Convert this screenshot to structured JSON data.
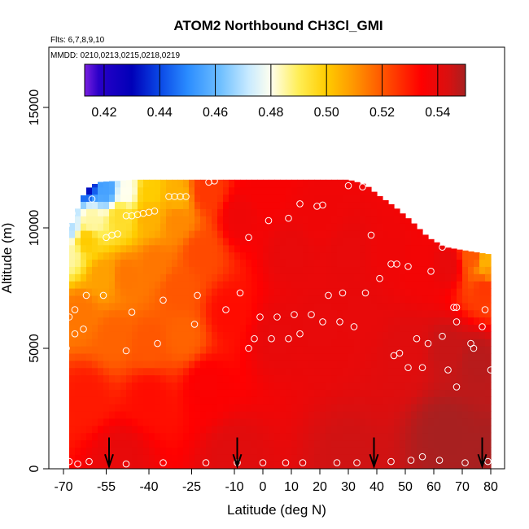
{
  "chart_data": {
    "type": "heatmap",
    "title": "ATOM2 Northbound CH3Cl_GMI",
    "flights_note": "Flts: 6,7,8,9,10",
    "dates_note": "MMDD: 0210,0213,0215,0218,0219",
    "xlabel": "Latitude (deg N)",
    "ylabel": "Altitude (m)",
    "xlim": [
      -70,
      80
    ],
    "ylim": [
      0,
      17500
    ],
    "x_tick_labels": [
      "-70",
      "-55",
      "-40",
      "-25",
      "-10",
      "0",
      "10",
      "20",
      "30",
      "40",
      "50",
      "60",
      "70",
      "80"
    ],
    "x_ticks": [
      -70,
      -55,
      -40,
      -25,
      -10,
      0,
      10,
      20,
      30,
      40,
      50,
      60,
      70,
      80
    ],
    "y_tick_labels": [
      "0",
      "5000",
      "10000",
      "15000"
    ],
    "y_ticks": [
      0,
      5000,
      10000,
      15000
    ],
    "colorbar": {
      "range": [
        0.413,
        0.55
      ],
      "tick_labels": [
        "0.42",
        "0.44",
        "0.46",
        "0.48",
        "0.50",
        "0.52",
        "0.54"
      ],
      "ticks": [
        0.42,
        0.44,
        0.46,
        0.48,
        0.5,
        0.52,
        0.54
      ],
      "stops": [
        {
          "v": 0.413,
          "color": "#7a1fe0"
        },
        {
          "v": 0.418,
          "color": "#2a00c8"
        },
        {
          "v": 0.43,
          "color": "#0000b8"
        },
        {
          "v": 0.44,
          "color": "#0a48e6"
        },
        {
          "v": 0.45,
          "color": "#2a8cff"
        },
        {
          "v": 0.462,
          "color": "#70c0ff"
        },
        {
          "v": 0.472,
          "color": "#c8eaff"
        },
        {
          "v": 0.48,
          "color": "#ffffee"
        },
        {
          "v": 0.49,
          "color": "#ffee55"
        },
        {
          "v": 0.5,
          "color": "#ffcc00"
        },
        {
          "v": 0.51,
          "color": "#ff9500"
        },
        {
          "v": 0.522,
          "color": "#ff4a00"
        },
        {
          "v": 0.534,
          "color": "#ff0000"
        },
        {
          "v": 0.544,
          "color": "#d81010"
        },
        {
          "v": 0.55,
          "color": "#a82020"
        }
      ]
    },
    "ceiling_profile": [
      {
        "lat": -68,
        "alt": 9900
      },
      {
        "lat": -66,
        "alt": 10500
      },
      {
        "lat": -64,
        "alt": 11100
      },
      {
        "lat": -62,
        "alt": 11600
      },
      {
        "lat": -58,
        "alt": 11900
      },
      {
        "lat": -45,
        "alt": 12000
      },
      {
        "lat": 30,
        "alt": 12000
      },
      {
        "lat": 36,
        "alt": 11800
      },
      {
        "lat": 40,
        "alt": 11400
      },
      {
        "lat": 46,
        "alt": 10900
      },
      {
        "lat": 52,
        "alt": 10300
      },
      {
        "lat": 58,
        "alt": 9600
      },
      {
        "lat": 64,
        "alt": 9200
      },
      {
        "lat": 74,
        "alt": 9000
      },
      {
        "lat": 80,
        "alt": 8900
      }
    ],
    "field_anchors": [
      {
        "lat": -68,
        "alt": 11500,
        "v": 0.45
      },
      {
        "lat": -62,
        "alt": 11900,
        "v": 0.43
      },
      {
        "lat": -55,
        "alt": 11600,
        "v": 0.455
      },
      {
        "lat": -48,
        "alt": 11500,
        "v": 0.48
      },
      {
        "lat": -40,
        "alt": 11400,
        "v": 0.5
      },
      {
        "lat": -30,
        "alt": 11300,
        "v": 0.505
      },
      {
        "lat": -20,
        "alt": 11500,
        "v": 0.525
      },
      {
        "lat": -68,
        "alt": 10000,
        "v": 0.47
      },
      {
        "lat": -60,
        "alt": 10300,
        "v": 0.485
      },
      {
        "lat": -50,
        "alt": 10500,
        "v": 0.495
      },
      {
        "lat": -40,
        "alt": 10500,
        "v": 0.505
      },
      {
        "lat": -30,
        "alt": 10300,
        "v": 0.512
      },
      {
        "lat": -68,
        "alt": 9000,
        "v": 0.485
      },
      {
        "lat": -62,
        "alt": 9500,
        "v": 0.5
      },
      {
        "lat": -56,
        "alt": 8000,
        "v": 0.508
      },
      {
        "lat": -48,
        "alt": 8000,
        "v": 0.515
      },
      {
        "lat": -38,
        "alt": 8500,
        "v": 0.515
      },
      {
        "lat": -30,
        "alt": 7500,
        "v": 0.52
      },
      {
        "lat": -22,
        "alt": 9000,
        "v": 0.522
      },
      {
        "lat": -64,
        "alt": 6500,
        "v": 0.515
      },
      {
        "lat": -52,
        "alt": 5500,
        "v": 0.518
      },
      {
        "lat": -40,
        "alt": 5200,
        "v": 0.52
      },
      {
        "lat": -28,
        "alt": 5500,
        "v": 0.518
      },
      {
        "lat": -62,
        "alt": 3000,
        "v": 0.53
      },
      {
        "lat": -40,
        "alt": 3000,
        "v": 0.532
      },
      {
        "lat": -20,
        "alt": 3500,
        "v": 0.535
      },
      {
        "lat": -12,
        "alt": 6500,
        "v": 0.532
      },
      {
        "lat": -8,
        "alt": 10500,
        "v": 0.538
      },
      {
        "lat": 0,
        "alt": 11500,
        "v": 0.536
      },
      {
        "lat": 10,
        "alt": 9000,
        "v": 0.54
      },
      {
        "lat": 20,
        "alt": 10500,
        "v": 0.538
      },
      {
        "lat": 30,
        "alt": 9000,
        "v": 0.54
      },
      {
        "lat": 5,
        "alt": 5500,
        "v": 0.54
      },
      {
        "lat": 20,
        "alt": 6000,
        "v": 0.54
      },
      {
        "lat": 35,
        "alt": 6500,
        "v": 0.54
      },
      {
        "lat": 45,
        "alt": 9000,
        "v": 0.538
      },
      {
        "lat": 55,
        "alt": 8500,
        "v": 0.537
      },
      {
        "lat": 65,
        "alt": 8500,
        "v": 0.54
      },
      {
        "lat": 74,
        "alt": 8800,
        "v": 0.52
      },
      {
        "lat": 78,
        "alt": 8600,
        "v": 0.505
      },
      {
        "lat": 80,
        "alt": 8300,
        "v": 0.51
      },
      {
        "lat": 78,
        "alt": 7500,
        "v": 0.525
      },
      {
        "lat": 50,
        "alt": 5000,
        "v": 0.542
      },
      {
        "lat": 65,
        "alt": 5000,
        "v": 0.546
      },
      {
        "lat": 75,
        "alt": 4500,
        "v": 0.548
      },
      {
        "lat": -50,
        "alt": 500,
        "v": 0.54
      },
      {
        "lat": -10,
        "alt": 500,
        "v": 0.542
      },
      {
        "lat": 30,
        "alt": 500,
        "v": 0.545
      },
      {
        "lat": 65,
        "alt": 1500,
        "v": 0.55
      },
      {
        "lat": 80,
        "alt": 500,
        "v": 0.55
      }
    ],
    "observation_points": [
      {
        "lat": -67,
        "alt": 12000
      },
      {
        "lat": -64,
        "alt": 11900
      },
      {
        "lat": -60,
        "alt": 11200
      },
      {
        "lat": -69,
        "alt": 10100
      },
      {
        "lat": -67,
        "alt": 10600
      },
      {
        "lat": -55,
        "alt": 9600
      },
      {
        "lat": -53,
        "alt": 9700
      },
      {
        "lat": -51,
        "alt": 9750
      },
      {
        "lat": -48,
        "alt": 10500
      },
      {
        "lat": -46,
        "alt": 10500
      },
      {
        "lat": -44,
        "alt": 10550
      },
      {
        "lat": -42,
        "alt": 10600
      },
      {
        "lat": -40,
        "alt": 10650
      },
      {
        "lat": -38,
        "alt": 10700
      },
      {
        "lat": -33,
        "alt": 11300
      },
      {
        "lat": -31,
        "alt": 11300
      },
      {
        "lat": -29,
        "alt": 11300
      },
      {
        "lat": -27,
        "alt": 11300
      },
      {
        "lat": -19,
        "alt": 11900
      },
      {
        "lat": -17,
        "alt": 11950
      },
      {
        "lat": -5,
        "alt": 9600
      },
      {
        "lat": 2,
        "alt": 10300
      },
      {
        "lat": 9,
        "alt": 10400
      },
      {
        "lat": 13,
        "alt": 11000
      },
      {
        "lat": 19,
        "alt": 10900
      },
      {
        "lat": 21,
        "alt": 10950
      },
      {
        "lat": 30,
        "alt": 11750
      },
      {
        "lat": 35,
        "alt": 11700
      },
      {
        "lat": 43,
        "alt": 11900
      },
      {
        "lat": 38,
        "alt": 9700
      },
      {
        "lat": 45,
        "alt": 8500
      },
      {
        "lat": 47,
        "alt": 8500
      },
      {
        "lat": 51,
        "alt": 8400
      },
      {
        "lat": 59,
        "alt": 8200
      },
      {
        "lat": 63,
        "alt": 9200
      },
      {
        "lat": 71,
        "alt": 9300
      },
      {
        "lat": 77,
        "alt": 9300
      },
      {
        "lat": -68,
        "alt": 6300
      },
      {
        "lat": -66,
        "alt": 5600
      },
      {
        "lat": -66,
        "alt": 6600
      },
      {
        "lat": -62,
        "alt": 7200
      },
      {
        "lat": -63,
        "alt": 5800
      },
      {
        "lat": -56,
        "alt": 7200
      },
      {
        "lat": -46,
        "alt": 6500
      },
      {
        "lat": -48,
        "alt": 4900
      },
      {
        "lat": -37,
        "alt": 5200
      },
      {
        "lat": -35,
        "alt": 7000
      },
      {
        "lat": -24,
        "alt": 6000
      },
      {
        "lat": -23,
        "alt": 7200
      },
      {
        "lat": -13,
        "alt": 6600
      },
      {
        "lat": -8,
        "alt": 7300
      },
      {
        "lat": -5,
        "alt": 5000
      },
      {
        "lat": -1,
        "alt": 6300
      },
      {
        "lat": 5,
        "alt": 6300
      },
      {
        "lat": 11,
        "alt": 6400
      },
      {
        "lat": -3,
        "alt": 5400
      },
      {
        "lat": 3,
        "alt": 5400
      },
      {
        "lat": 9,
        "alt": 5400
      },
      {
        "lat": 13,
        "alt": 5600
      },
      {
        "lat": 17,
        "alt": 6400
      },
      {
        "lat": 21,
        "alt": 6100
      },
      {
        "lat": 23,
        "alt": 7200
      },
      {
        "lat": 28,
        "alt": 7300
      },
      {
        "lat": 27,
        "alt": 6100
      },
      {
        "lat": 32,
        "alt": 5900
      },
      {
        "lat": 36,
        "alt": 7300
      },
      {
        "lat": 41,
        "alt": 7900
      },
      {
        "lat": 46,
        "alt": 4700
      },
      {
        "lat": 48,
        "alt": 4800
      },
      {
        "lat": 51,
        "alt": 4200
      },
      {
        "lat": 54,
        "alt": 5400
      },
      {
        "lat": 56,
        "alt": 4200
      },
      {
        "lat": 58,
        "alt": 5200
      },
      {
        "lat": 63,
        "alt": 5500
      },
      {
        "lat": 65,
        "alt": 4100
      },
      {
        "lat": 67,
        "alt": 6700
      },
      {
        "lat": 68,
        "alt": 6700
      },
      {
        "lat": 68,
        "alt": 6100
      },
      {
        "lat": 68,
        "alt": 3400
      },
      {
        "lat": 73,
        "alt": 5200
      },
      {
        "lat": 74,
        "alt": 5000
      },
      {
        "lat": 77,
        "alt": 5900
      },
      {
        "lat": 78,
        "alt": 6600
      },
      {
        "lat": 80,
        "alt": 4100
      },
      {
        "lat": -69,
        "alt": 5000
      },
      {
        "lat": -68,
        "alt": 300
      },
      {
        "lat": -65,
        "alt": 200
      },
      {
        "lat": -61,
        "alt": 300
      },
      {
        "lat": -48,
        "alt": 200
      },
      {
        "lat": -35,
        "alt": 250
      },
      {
        "lat": -20,
        "alt": 250
      },
      {
        "lat": -9,
        "alt": 250
      },
      {
        "lat": 0,
        "alt": 250
      },
      {
        "lat": 8,
        "alt": 250
      },
      {
        "lat": 14,
        "alt": 250
      },
      {
        "lat": 26,
        "alt": 250
      },
      {
        "lat": 33,
        "alt": 250
      },
      {
        "lat": 45,
        "alt": 300
      },
      {
        "lat": 52,
        "alt": 350
      },
      {
        "lat": 56,
        "alt": 500
      },
      {
        "lat": 62,
        "alt": 350
      },
      {
        "lat": 71,
        "alt": 250
      },
      {
        "lat": 79,
        "alt": 300
      }
    ],
    "flight_start_arrows": [
      -54,
      -9,
      39,
      77
    ]
  }
}
